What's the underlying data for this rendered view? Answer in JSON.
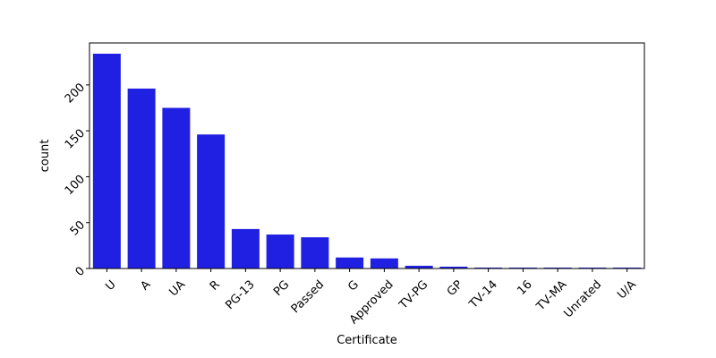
{
  "chart_data": {
    "type": "bar",
    "xlabel": "Certificate",
    "ylabel": "count",
    "categories": [
      "U",
      "A",
      "UA",
      "R",
      "PG-13",
      "PG",
      "Passed",
      "G",
      "Approved",
      "TV-PG",
      "GP",
      "TV-14",
      "16",
      "TV-MA",
      "Unrated",
      "U/A"
    ],
    "values": [
      234,
      196,
      175,
      146,
      43,
      37,
      34,
      12,
      11,
      3,
      2,
      1,
      1,
      1,
      1,
      1
    ],
    "ylim": [
      0,
      245.7
    ],
    "yticks": [
      0,
      50,
      100,
      150,
      200
    ],
    "bar_color": "#2020e3",
    "grid": false,
    "legend": "none"
  }
}
